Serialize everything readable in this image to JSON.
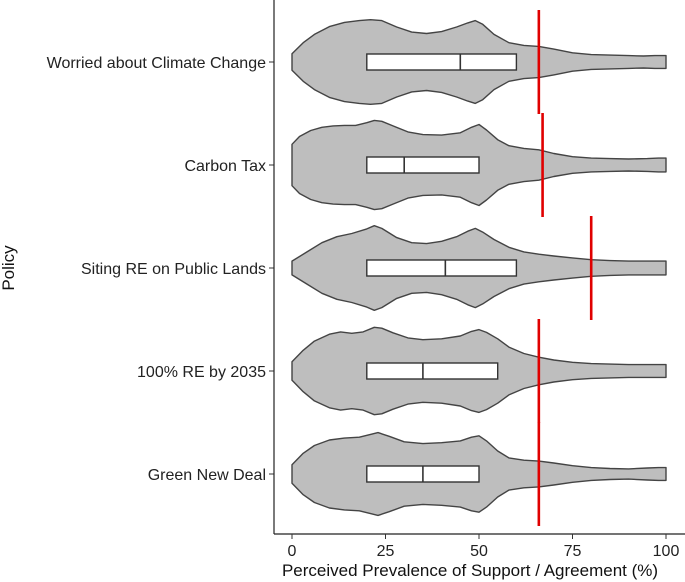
{
  "chart_data": {
    "type": "violin",
    "orientation": "horizontal",
    "xlabel": "Perceived Prevalence of Support / Agreement (%)",
    "ylabel": "Policy",
    "xlim": [
      0,
      100
    ],
    "x_ticks": [
      0,
      25,
      50,
      75,
      100
    ],
    "x_tick_labels": [
      "0",
      "25",
      "50",
      "75",
      "100"
    ],
    "grid": false,
    "colors": {
      "violin_fill": "#bebebe",
      "violin_stroke": "#444444",
      "box_fill": "#ffffff",
      "actual_line": "#e00000"
    },
    "categories": [
      "Worried about Climate Change",
      "Carbon Tax",
      "Siting RE on Public Lands",
      "100% RE by 2035",
      "Green New Deal"
    ],
    "series": [
      {
        "category": "Worried about Climate Change",
        "box": {
          "q1": 20,
          "median": 45,
          "q3": 60
        },
        "actual_value": 66,
        "density": [
          [
            0,
            0.18
          ],
          [
            3,
            0.42
          ],
          [
            6,
            0.6
          ],
          [
            10,
            0.77
          ],
          [
            14,
            0.86
          ],
          [
            18,
            0.9
          ],
          [
            21,
            0.92
          ],
          [
            24,
            0.9
          ],
          [
            28,
            0.76
          ],
          [
            32,
            0.65
          ],
          [
            36,
            0.62
          ],
          [
            40,
            0.66
          ],
          [
            44,
            0.76
          ],
          [
            47,
            0.85
          ],
          [
            49,
            0.9
          ],
          [
            51,
            0.82
          ],
          [
            54,
            0.6
          ],
          [
            58,
            0.42
          ],
          [
            62,
            0.36
          ],
          [
            66,
            0.34
          ],
          [
            70,
            0.28
          ],
          [
            75,
            0.2
          ],
          [
            80,
            0.16
          ],
          [
            85,
            0.15
          ],
          [
            90,
            0.14
          ],
          [
            94,
            0.13
          ],
          [
            97,
            0.14
          ],
          [
            100,
            0.14
          ]
        ]
      },
      {
        "category": "Carbon Tax",
        "box": {
          "q1": 20,
          "median": 30,
          "q3": 50
        },
        "actual_value": 67,
        "density": [
          [
            0,
            0.45
          ],
          [
            2,
            0.62
          ],
          [
            5,
            0.75
          ],
          [
            8,
            0.82
          ],
          [
            11,
            0.85
          ],
          [
            14,
            0.86
          ],
          [
            17,
            0.86
          ],
          [
            20,
            0.92
          ],
          [
            22,
            0.97
          ],
          [
            24,
            0.95
          ],
          [
            27,
            0.85
          ],
          [
            31,
            0.72
          ],
          [
            35,
            0.66
          ],
          [
            40,
            0.65
          ],
          [
            45,
            0.7
          ],
          [
            48,
            0.82
          ],
          [
            50,
            0.88
          ],
          [
            52,
            0.76
          ],
          [
            55,
            0.55
          ],
          [
            58,
            0.42
          ],
          [
            62,
            0.36
          ],
          [
            66,
            0.33
          ],
          [
            70,
            0.25
          ],
          [
            75,
            0.18
          ],
          [
            80,
            0.15
          ],
          [
            85,
            0.14
          ],
          [
            90,
            0.13
          ],
          [
            95,
            0.14
          ],
          [
            98,
            0.15
          ],
          [
            100,
            0.15
          ]
        ]
      },
      {
        "category": "Siting RE on Public Lands",
        "box": {
          "q1": 20,
          "median": 41,
          "q3": 60
        },
        "actual_value": 80,
        "density": [
          [
            0,
            0.15
          ],
          [
            4,
            0.35
          ],
          [
            8,
            0.55
          ],
          [
            12,
            0.68
          ],
          [
            16,
            0.75
          ],
          [
            20,
            0.85
          ],
          [
            22,
            0.92
          ],
          [
            24,
            0.86
          ],
          [
            28,
            0.66
          ],
          [
            32,
            0.55
          ],
          [
            36,
            0.53
          ],
          [
            40,
            0.58
          ],
          [
            44,
            0.68
          ],
          [
            47,
            0.8
          ],
          [
            49,
            0.86
          ],
          [
            51,
            0.78
          ],
          [
            54,
            0.62
          ],
          [
            58,
            0.45
          ],
          [
            62,
            0.35
          ],
          [
            66,
            0.3
          ],
          [
            70,
            0.26
          ],
          [
            75,
            0.22
          ],
          [
            80,
            0.18
          ],
          [
            85,
            0.16
          ],
          [
            90,
            0.15
          ],
          [
            95,
            0.15
          ],
          [
            100,
            0.15
          ]
        ]
      },
      {
        "category": "100% RE by 2035",
        "box": {
          "q1": 20,
          "median": 35,
          "q3": 55
        },
        "actual_value": 66,
        "density": [
          [
            0,
            0.2
          ],
          [
            3,
            0.45
          ],
          [
            6,
            0.65
          ],
          [
            10,
            0.8
          ],
          [
            13,
            0.85
          ],
          [
            16,
            0.82
          ],
          [
            19,
            0.85
          ],
          [
            22,
            0.95
          ],
          [
            24,
            0.93
          ],
          [
            27,
            0.83
          ],
          [
            31,
            0.72
          ],
          [
            35,
            0.68
          ],
          [
            40,
            0.7
          ],
          [
            45,
            0.76
          ],
          [
            48,
            0.86
          ],
          [
            50,
            0.9
          ],
          [
            52,
            0.84
          ],
          [
            55,
            0.7
          ],
          [
            58,
            0.52
          ],
          [
            62,
            0.38
          ],
          [
            66,
            0.3
          ],
          [
            70,
            0.24
          ],
          [
            75,
            0.19
          ],
          [
            80,
            0.16
          ],
          [
            85,
            0.15
          ],
          [
            90,
            0.14
          ],
          [
            95,
            0.14
          ],
          [
            100,
            0.14
          ]
        ]
      },
      {
        "category": "Green New Deal",
        "box": {
          "q1": 20,
          "median": 35,
          "q3": 50
        },
        "actual_value": 66,
        "density": [
          [
            0,
            0.2
          ],
          [
            3,
            0.45
          ],
          [
            6,
            0.62
          ],
          [
            10,
            0.74
          ],
          [
            14,
            0.78
          ],
          [
            18,
            0.8
          ],
          [
            21,
            0.86
          ],
          [
            23,
            0.9
          ],
          [
            26,
            0.82
          ],
          [
            30,
            0.7
          ],
          [
            35,
            0.66
          ],
          [
            40,
            0.68
          ],
          [
            45,
            0.72
          ],
          [
            48,
            0.8
          ],
          [
            50,
            0.83
          ],
          [
            52,
            0.72
          ],
          [
            55,
            0.5
          ],
          [
            58,
            0.35
          ],
          [
            62,
            0.3
          ],
          [
            66,
            0.28
          ],
          [
            70,
            0.24
          ],
          [
            75,
            0.18
          ],
          [
            80,
            0.14
          ],
          [
            85,
            0.12
          ],
          [
            90,
            0.11
          ],
          [
            95,
            0.13
          ],
          [
            98,
            0.14
          ],
          [
            100,
            0.14
          ]
        ]
      }
    ]
  }
}
